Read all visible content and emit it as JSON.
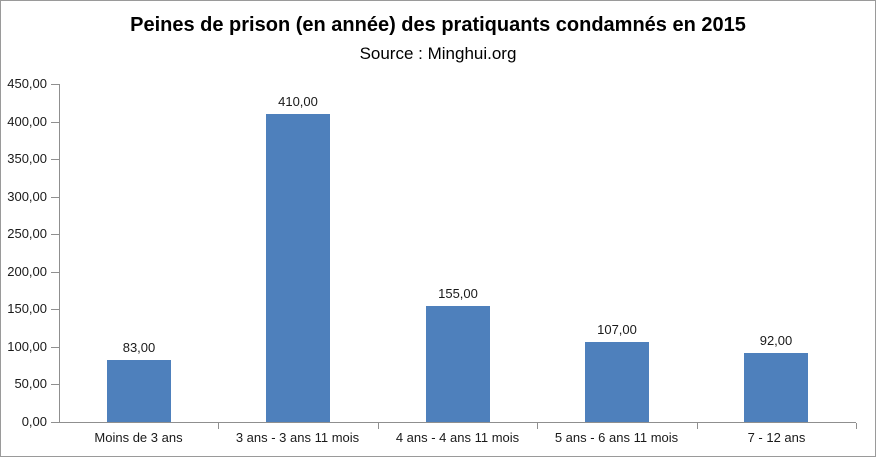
{
  "window": {
    "background": "#ffffff",
    "border_color": "#9a9a9a"
  },
  "chart_data": {
    "type": "bar",
    "title": "Peines de prison (en année) des pratiquants condamnés en 2015",
    "subtitle": "Source : Minghui.org",
    "categories": [
      "Moins de 3 ans",
      "3 ans - 3 ans 11 mois",
      "4 ans - 4 ans 11 mois",
      "5 ans - 6 ans 11 mois",
      "7 - 12 ans"
    ],
    "values": [
      83,
      410,
      155,
      107,
      92
    ],
    "value_labels": [
      "83,00",
      "410,00",
      "155,00",
      "107,00",
      "92,00"
    ],
    "xlabel": "",
    "ylabel": "",
    "ylim": [
      0,
      450
    ],
    "y_ticks": [
      {
        "value": 0,
        "label": "0,00"
      },
      {
        "value": 50,
        "label": "50,00"
      },
      {
        "value": 100,
        "label": "100,00"
      },
      {
        "value": 150,
        "label": "150,00"
      },
      {
        "value": 200,
        "label": "200,00"
      },
      {
        "value": 250,
        "label": "250,00"
      },
      {
        "value": 300,
        "label": "300,00"
      },
      {
        "value": 350,
        "label": "350,00"
      },
      {
        "value": 400,
        "label": "400,00"
      },
      {
        "value": 450,
        "label": "450,00"
      }
    ],
    "bar_color": "#4e80bc",
    "axis_color": "#8f8f8f",
    "text_color": "#1a1a1a",
    "grid": "off",
    "legend": "none",
    "data_labels": "above bars, French decimal format"
  }
}
